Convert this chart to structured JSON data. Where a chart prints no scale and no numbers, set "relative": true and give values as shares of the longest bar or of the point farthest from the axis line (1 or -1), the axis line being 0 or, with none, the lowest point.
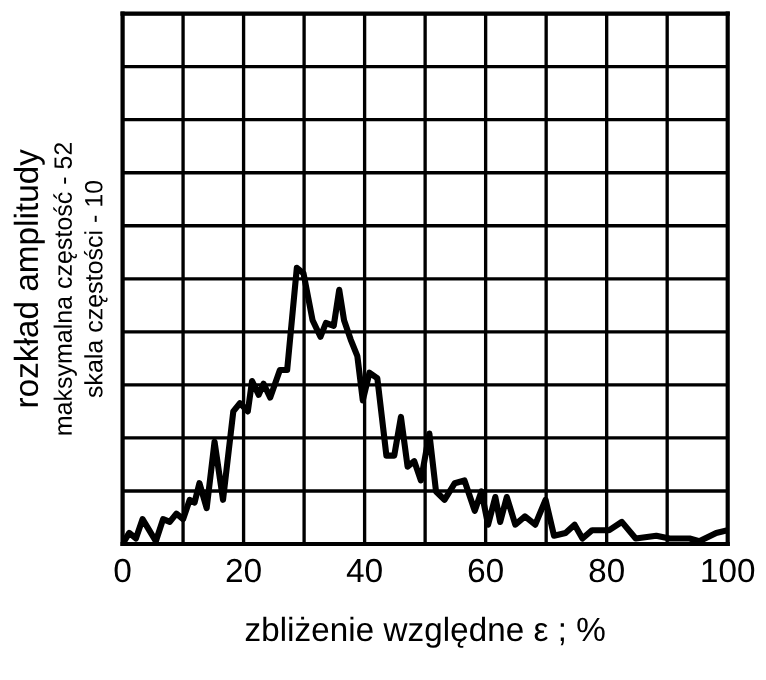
{
  "chart_data": {
    "type": "line",
    "xlabel": "zbliżenie względne ε ; %",
    "ylabel": "rozkład amplitudy",
    "annotations": [
      "maksymalna częstość - 52",
      "skala częstości - 10"
    ],
    "xlim": [
      0,
      100
    ],
    "xticks": [
      0,
      {
        "value": 10,
        "label": null
      },
      20,
      {
        "value": 30,
        "label": null
      },
      40,
      {
        "value": 50,
        "label": null
      },
      60,
      {
        "value": 70,
        "label": null
      },
      80,
      {
        "value": 90,
        "label": null
      },
      100
    ],
    "relative": true,
    "tick_labels": "x",
    "grid": true,
    "legend": false,
    "marker": "none",
    "line_style": "solid",
    "series": [
      {
        "color": "#000000",
        "x": [
          0,
          1.1,
          2.2,
          3.3,
          4.4,
          5.5,
          6.7,
          7.8,
          8.9,
          10,
          11.1,
          11.9,
          12.7,
          13.9,
          15.2,
          16.6,
          18.3,
          19.4,
          20.7,
          21.4,
          22.5,
          23.3,
          24.4,
          26,
          27.2,
          28.8,
          29.9,
          31.4,
          32.7,
          33.6,
          34.9,
          35.8,
          36.6,
          37.7,
          38.8,
          39.7,
          40.8,
          42.1,
          43.6,
          44.9,
          46,
          47.1,
          48.2,
          49.3,
          50.7,
          51.8,
          53.2,
          54.9,
          56.5,
          58.2,
          59.3,
          60.4,
          61.6,
          62.4,
          63.5,
          64.9,
          66.5,
          68.2,
          69.9,
          71.3,
          73.2,
          74.7,
          76,
          77.6,
          80.4,
          82.5,
          84.8,
          88.2,
          90.4,
          93.7,
          95.3,
          98.1,
          100
        ],
        "values": [
          0,
          0.04,
          0.02,
          0.09,
          0.05,
          0.01,
          0.09,
          0.08,
          0.11,
          0.09,
          0.16,
          0.15,
          0.22,
          0.13,
          0.37,
          0.16,
          0.48,
          0.51,
          0.48,
          0.59,
          0.54,
          0.58,
          0.53,
          0.63,
          0.63,
          1,
          0.98,
          0.81,
          0.75,
          0.8,
          0.79,
          0.92,
          0.81,
          0.74,
          0.68,
          0.52,
          0.62,
          0.6,
          0.32,
          0.32,
          0.46,
          0.28,
          0.3,
          0.23,
          0.4,
          0.19,
          0.16,
          0.22,
          0.23,
          0.12,
          0.19,
          0.07,
          0.17,
          0.08,
          0.17,
          0.07,
          0.1,
          0.07,
          0.16,
          0.03,
          0.04,
          0.07,
          0.02,
          0.05,
          0.05,
          0.08,
          0.02,
          0.03,
          0.02,
          0.02,
          0.01,
          0.04,
          0.05
        ]
      }
    ]
  }
}
